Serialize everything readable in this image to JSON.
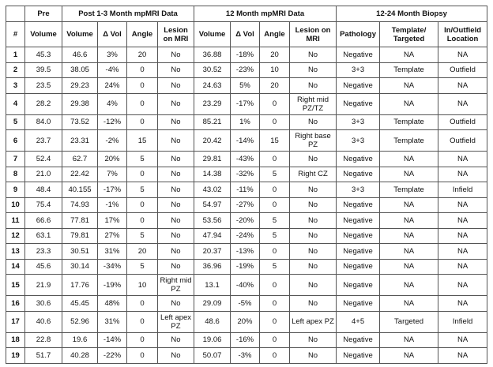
{
  "group_headers": [
    "",
    "Pre",
    "Post 1-3 Month mpMRI Data",
    "12 Month mpMRI Data",
    "12-24 Month Biopsy"
  ],
  "columns": [
    "#",
    "Volume",
    "Volume",
    "Δ Vol",
    "Angle",
    "Lesion on MRI",
    "Volume",
    "Δ Vol",
    "Angle",
    "Lesion on MRI",
    "Pathology",
    "Template/ Targeted",
    "In/Outfield Location"
  ],
  "rows": [
    [
      "1",
      "45.3",
      "46.6",
      "3%",
      "20",
      "No",
      "36.88",
      "-18%",
      "20",
      "No",
      "Negative",
      "NA",
      "NA"
    ],
    [
      "2",
      "39.5",
      "38.05",
      "-4%",
      "0",
      "No",
      "30.52",
      "-23%",
      "10",
      "No",
      "3+3",
      "Template",
      "Outfield"
    ],
    [
      "3",
      "23.5",
      "29.23",
      "24%",
      "0",
      "No",
      "24.63",
      "5%",
      "20",
      "No",
      "Negative",
      "NA",
      "NA"
    ],
    [
      "4",
      "28.2",
      "29.38",
      "4%",
      "0",
      "No",
      "23.29",
      "-17%",
      "0",
      "Right mid PZ/TZ",
      "Negative",
      "NA",
      "NA"
    ],
    [
      "5",
      "84.0",
      "73.52",
      "-12%",
      "0",
      "No",
      "85.21",
      "1%",
      "0",
      "No",
      "3+3",
      "Template",
      "Outfield"
    ],
    [
      "6",
      "23.7",
      "23.31",
      "-2%",
      "15",
      "No",
      "20.42",
      "-14%",
      "15",
      "Right base PZ",
      "3+3",
      "Template",
      "Outfield"
    ],
    [
      "7",
      "52.4",
      "62.7",
      "20%",
      "5",
      "No",
      "29.81",
      "-43%",
      "0",
      "No",
      "Negative",
      "NA",
      "NA"
    ],
    [
      "8",
      "21.0",
      "22.42",
      "7%",
      "0",
      "No",
      "14.38",
      "-32%",
      "5",
      "Right CZ",
      "Negative",
      "NA",
      "NA"
    ],
    [
      "9",
      "48.4",
      "40.155",
      "-17%",
      "5",
      "No",
      "43.02",
      "-11%",
      "0",
      "No",
      "3+3",
      "Template",
      "Infield"
    ],
    [
      "10",
      "75.4",
      "74.93",
      "-1%",
      "0",
      "No",
      "54.97",
      "-27%",
      "0",
      "No",
      "Negative",
      "NA",
      "NA"
    ],
    [
      "11",
      "66.6",
      "77.81",
      "17%",
      "0",
      "No",
      "53.56",
      "-20%",
      "5",
      "No",
      "Negative",
      "NA",
      "NA"
    ],
    [
      "12",
      "63.1",
      "79.81",
      "27%",
      "5",
      "No",
      "47.94",
      "-24%",
      "5",
      "No",
      "Negative",
      "NA",
      "NA"
    ],
    [
      "13",
      "23.3",
      "30.51",
      "31%",
      "20",
      "No",
      "20.37",
      "-13%",
      "0",
      "No",
      "Negative",
      "NA",
      "NA"
    ],
    [
      "14",
      "45.6",
      "30.14",
      "-34%",
      "5",
      "No",
      "36.96",
      "-19%",
      "5",
      "No",
      "Negative",
      "NA",
      "NA"
    ],
    [
      "15",
      "21.9",
      "17.76",
      "-19%",
      "10",
      "Right mid PZ",
      "13.1",
      "-40%",
      "0",
      "No",
      "Negative",
      "NA",
      "NA"
    ],
    [
      "16",
      "30.6",
      "45.45",
      "48%",
      "0",
      "No",
      "29.09",
      "-5%",
      "0",
      "No",
      "Negative",
      "NA",
      "NA"
    ],
    [
      "17",
      "40.6",
      "52.96",
      "31%",
      "0",
      "Left apex PZ",
      "48.6",
      "20%",
      "0",
      "Left apex PZ",
      "4+5",
      "Targeted",
      "Infield"
    ],
    [
      "18",
      "22.8",
      "19.6",
      "-14%",
      "0",
      "No",
      "19.06",
      "-16%",
      "0",
      "No",
      "Negative",
      "NA",
      "NA"
    ],
    [
      "19",
      "51.7",
      "40.28",
      "-22%",
      "0",
      "No",
      "50.07",
      "-3%",
      "0",
      "No",
      "Negative",
      "NA",
      "NA"
    ]
  ]
}
